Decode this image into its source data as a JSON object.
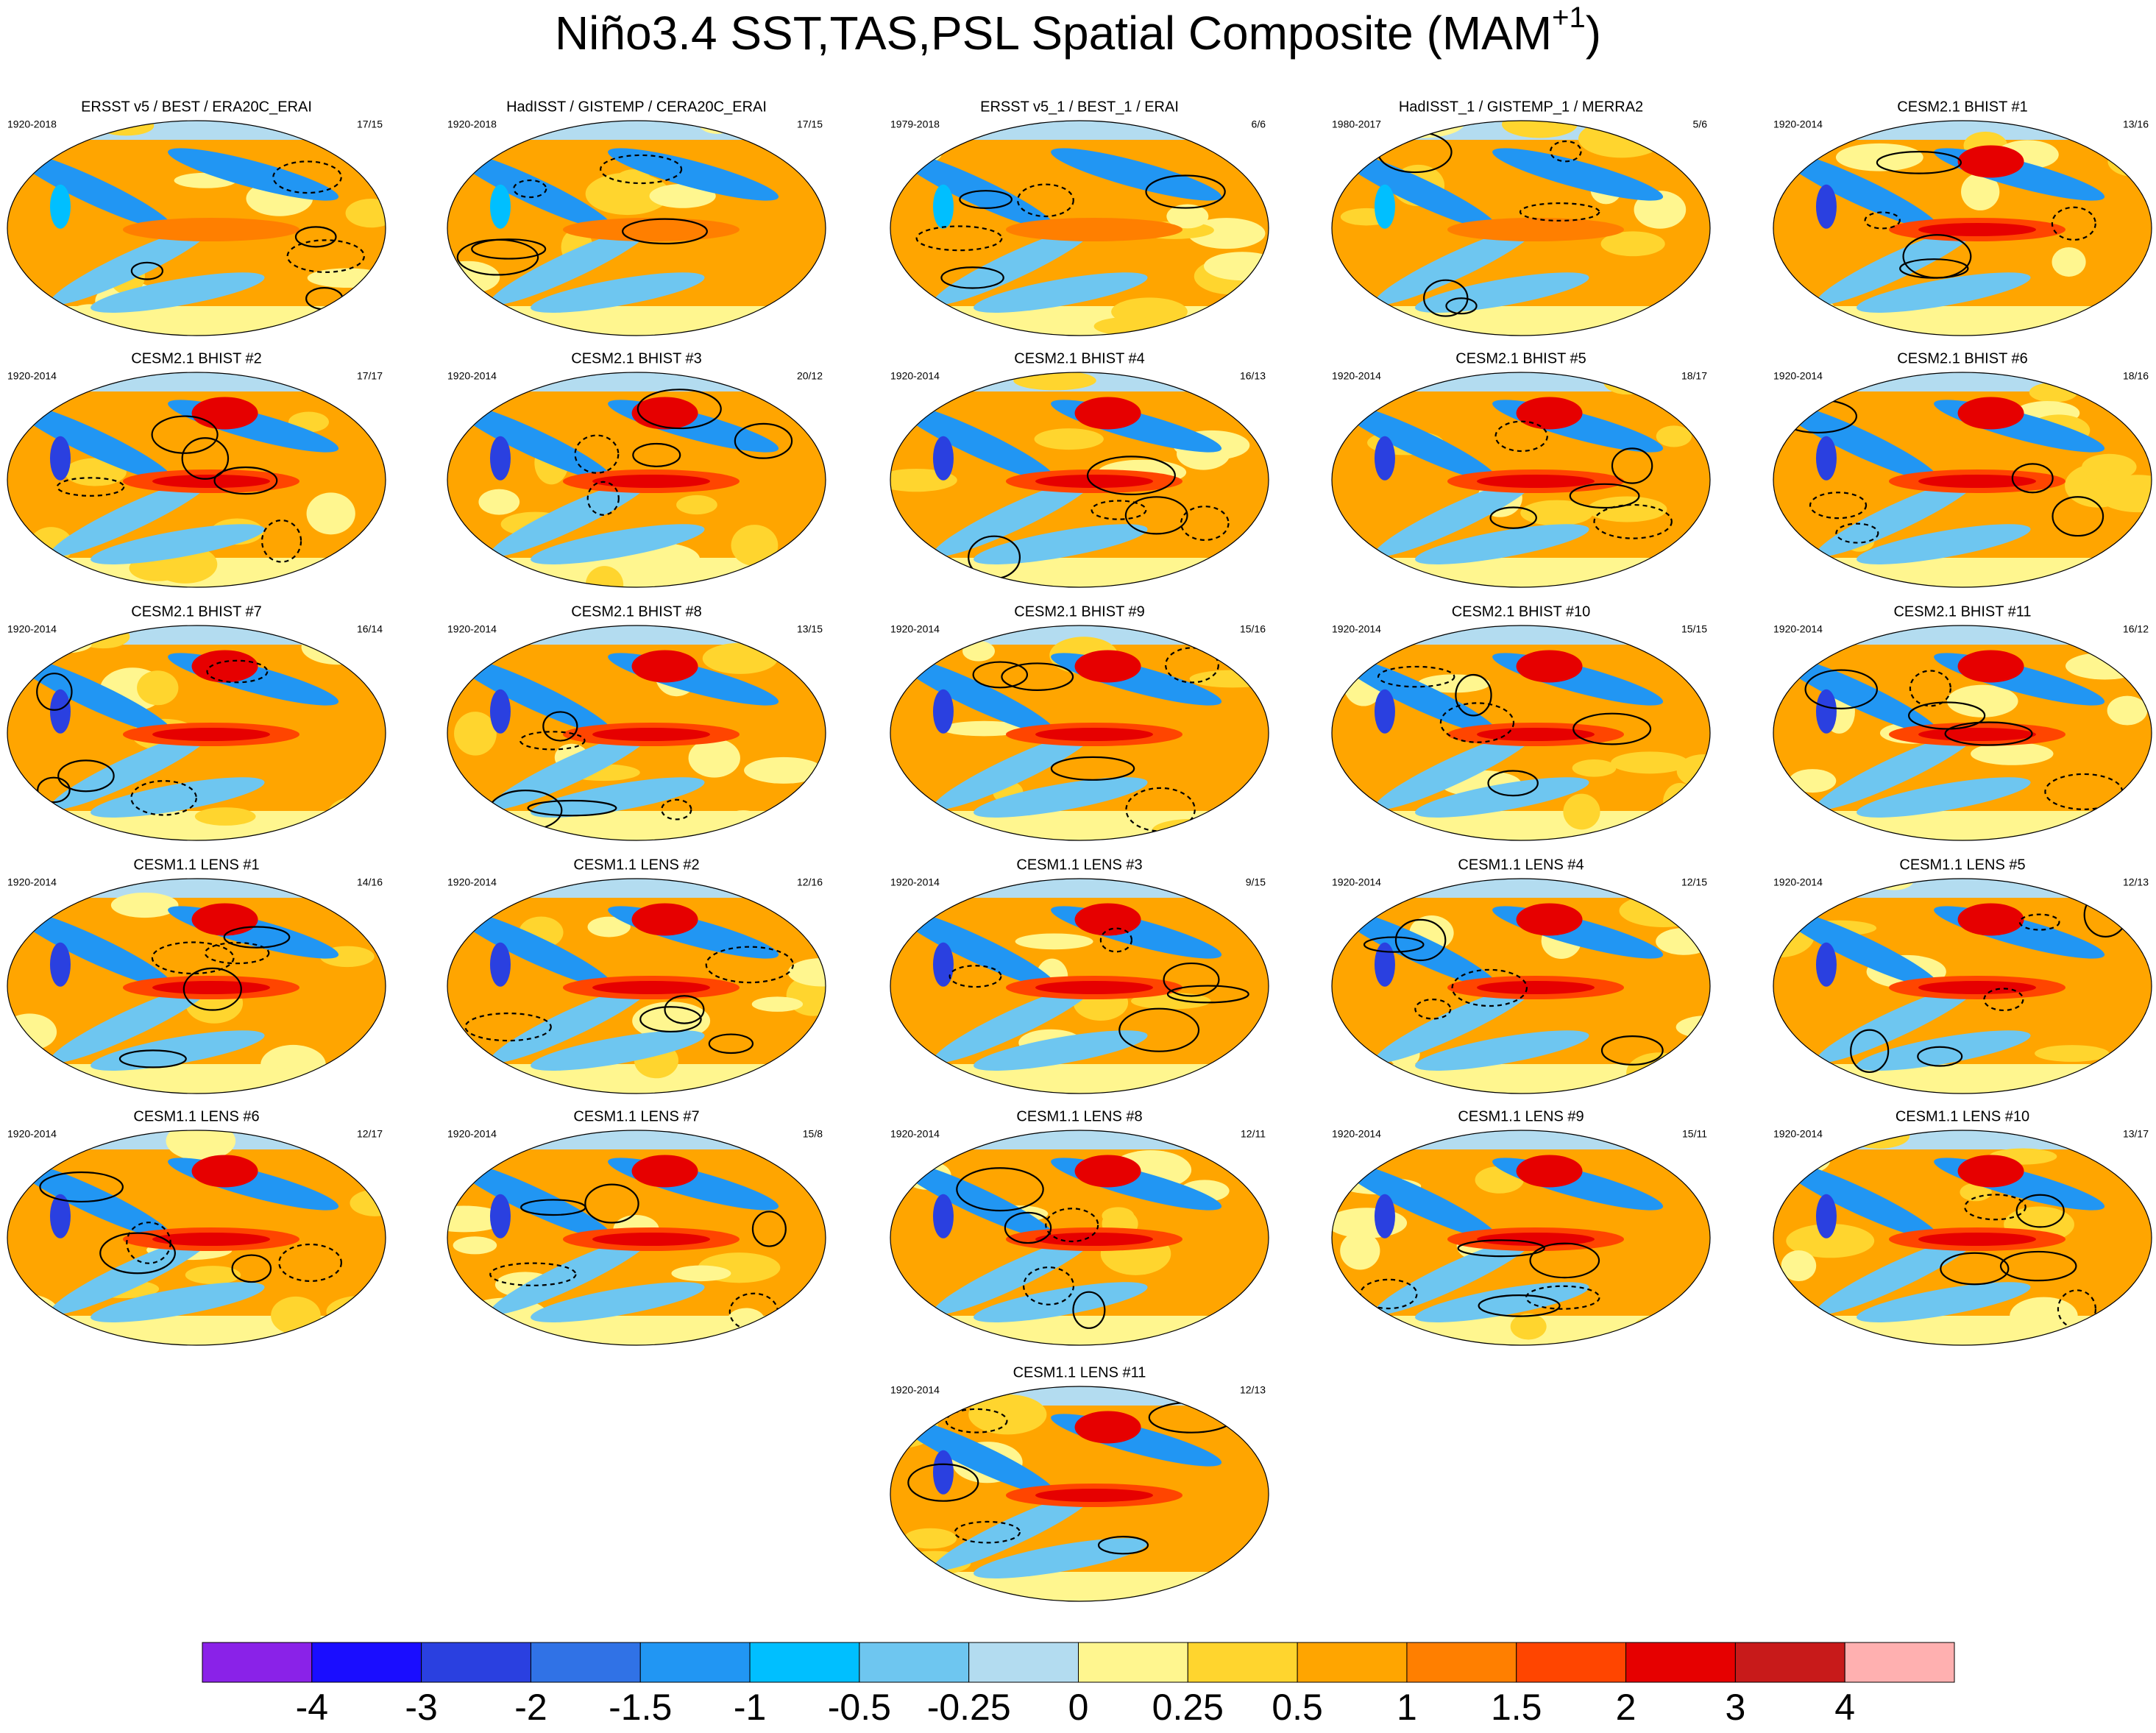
{
  "title": {
    "text": "Niño3.4 SST,TAS,PSL Spatial Composite (MAM",
    "superscript": "+1",
    "close": ")"
  },
  "panels": [
    {
      "title": "ERSST v5 / BEST / ERA20C_ERAI",
      "period": "1920-2018",
      "ratio": "17/15"
    },
    {
      "title": "HadISST / GISTEMP / CERA20C_ERAI",
      "period": "1920-2018",
      "ratio": "17/15"
    },
    {
      "title": "ERSST v5_1 / BEST_1 / ERAI",
      "period": "1979-2018",
      "ratio": "6/6"
    },
    {
      "title": "HadISST_1 / GISTEMP_1 / MERRA2",
      "period": "1980-2017",
      "ratio": "5/6"
    },
    {
      "title": "CESM2.1 BHIST #1",
      "period": "1920-2014",
      "ratio": "13/16"
    },
    {
      "title": "CESM2.1 BHIST #2",
      "period": "1920-2014",
      "ratio": "17/17"
    },
    {
      "title": "CESM2.1 BHIST #3",
      "period": "1920-2014",
      "ratio": "20/12"
    },
    {
      "title": "CESM2.1 BHIST #4",
      "period": "1920-2014",
      "ratio": "16/13"
    },
    {
      "title": "CESM2.1 BHIST #5",
      "period": "1920-2014",
      "ratio": "18/17"
    },
    {
      "title": "CESM2.1 BHIST #6",
      "period": "1920-2014",
      "ratio": "18/16"
    },
    {
      "title": "CESM2.1 BHIST #7",
      "period": "1920-2014",
      "ratio": "16/14"
    },
    {
      "title": "CESM2.1 BHIST #8",
      "period": "1920-2014",
      "ratio": "13/15"
    },
    {
      "title": "CESM2.1 BHIST #9",
      "period": "1920-2014",
      "ratio": "15/16"
    },
    {
      "title": "CESM2.1 BHIST #10",
      "period": "1920-2014",
      "ratio": "15/15"
    },
    {
      "title": "CESM2.1 BHIST #11",
      "period": "1920-2014",
      "ratio": "16/12"
    },
    {
      "title": "CESM1.1 LENS #1",
      "period": "1920-2014",
      "ratio": "14/16"
    },
    {
      "title": "CESM1.1 LENS #2",
      "period": "1920-2014",
      "ratio": "12/16"
    },
    {
      "title": "CESM1.1 LENS #3",
      "period": "1920-2014",
      "ratio": "9/15"
    },
    {
      "title": "CESM1.1 LENS #4",
      "period": "1920-2014",
      "ratio": "12/15"
    },
    {
      "title": "CESM1.1 LENS #5",
      "period": "1920-2014",
      "ratio": "12/13"
    },
    {
      "title": "CESM1.1 LENS #6",
      "period": "1920-2014",
      "ratio": "12/17"
    },
    {
      "title": "CESM1.1 LENS #7",
      "period": "1920-2014",
      "ratio": "15/8"
    },
    {
      "title": "CESM1.1 LENS #8",
      "period": "1920-2014",
      "ratio": "12/11"
    },
    {
      "title": "CESM1.1 LENS #9",
      "period": "1920-2014",
      "ratio": "15/11"
    },
    {
      "title": "CESM1.1 LENS #10",
      "period": "1920-2014",
      "ratio": "13/17"
    },
    {
      "title": "CESM1.1 LENS #11",
      "period": "1920-2014",
      "ratio": "12/13"
    }
  ],
  "colorbar": {
    "colors": [
      "#8a22e8",
      "#1a0dff",
      "#2a40e0",
      "#3072e6",
      "#2196f3",
      "#00bfff",
      "#6ec6f0",
      "#b3dcf0",
      "#fff68f",
      "#ffd52e",
      "#ffa500",
      "#ff7f00",
      "#ff4500",
      "#e60000",
      "#c81a1a",
      "#ffb0b0"
    ],
    "labels": [
      -4,
      -3,
      -2,
      -1.5,
      -1,
      -0.5,
      -0.25,
      0,
      0.25,
      0.5,
      1,
      1.5,
      2,
      3,
      4
    ]
  }
}
